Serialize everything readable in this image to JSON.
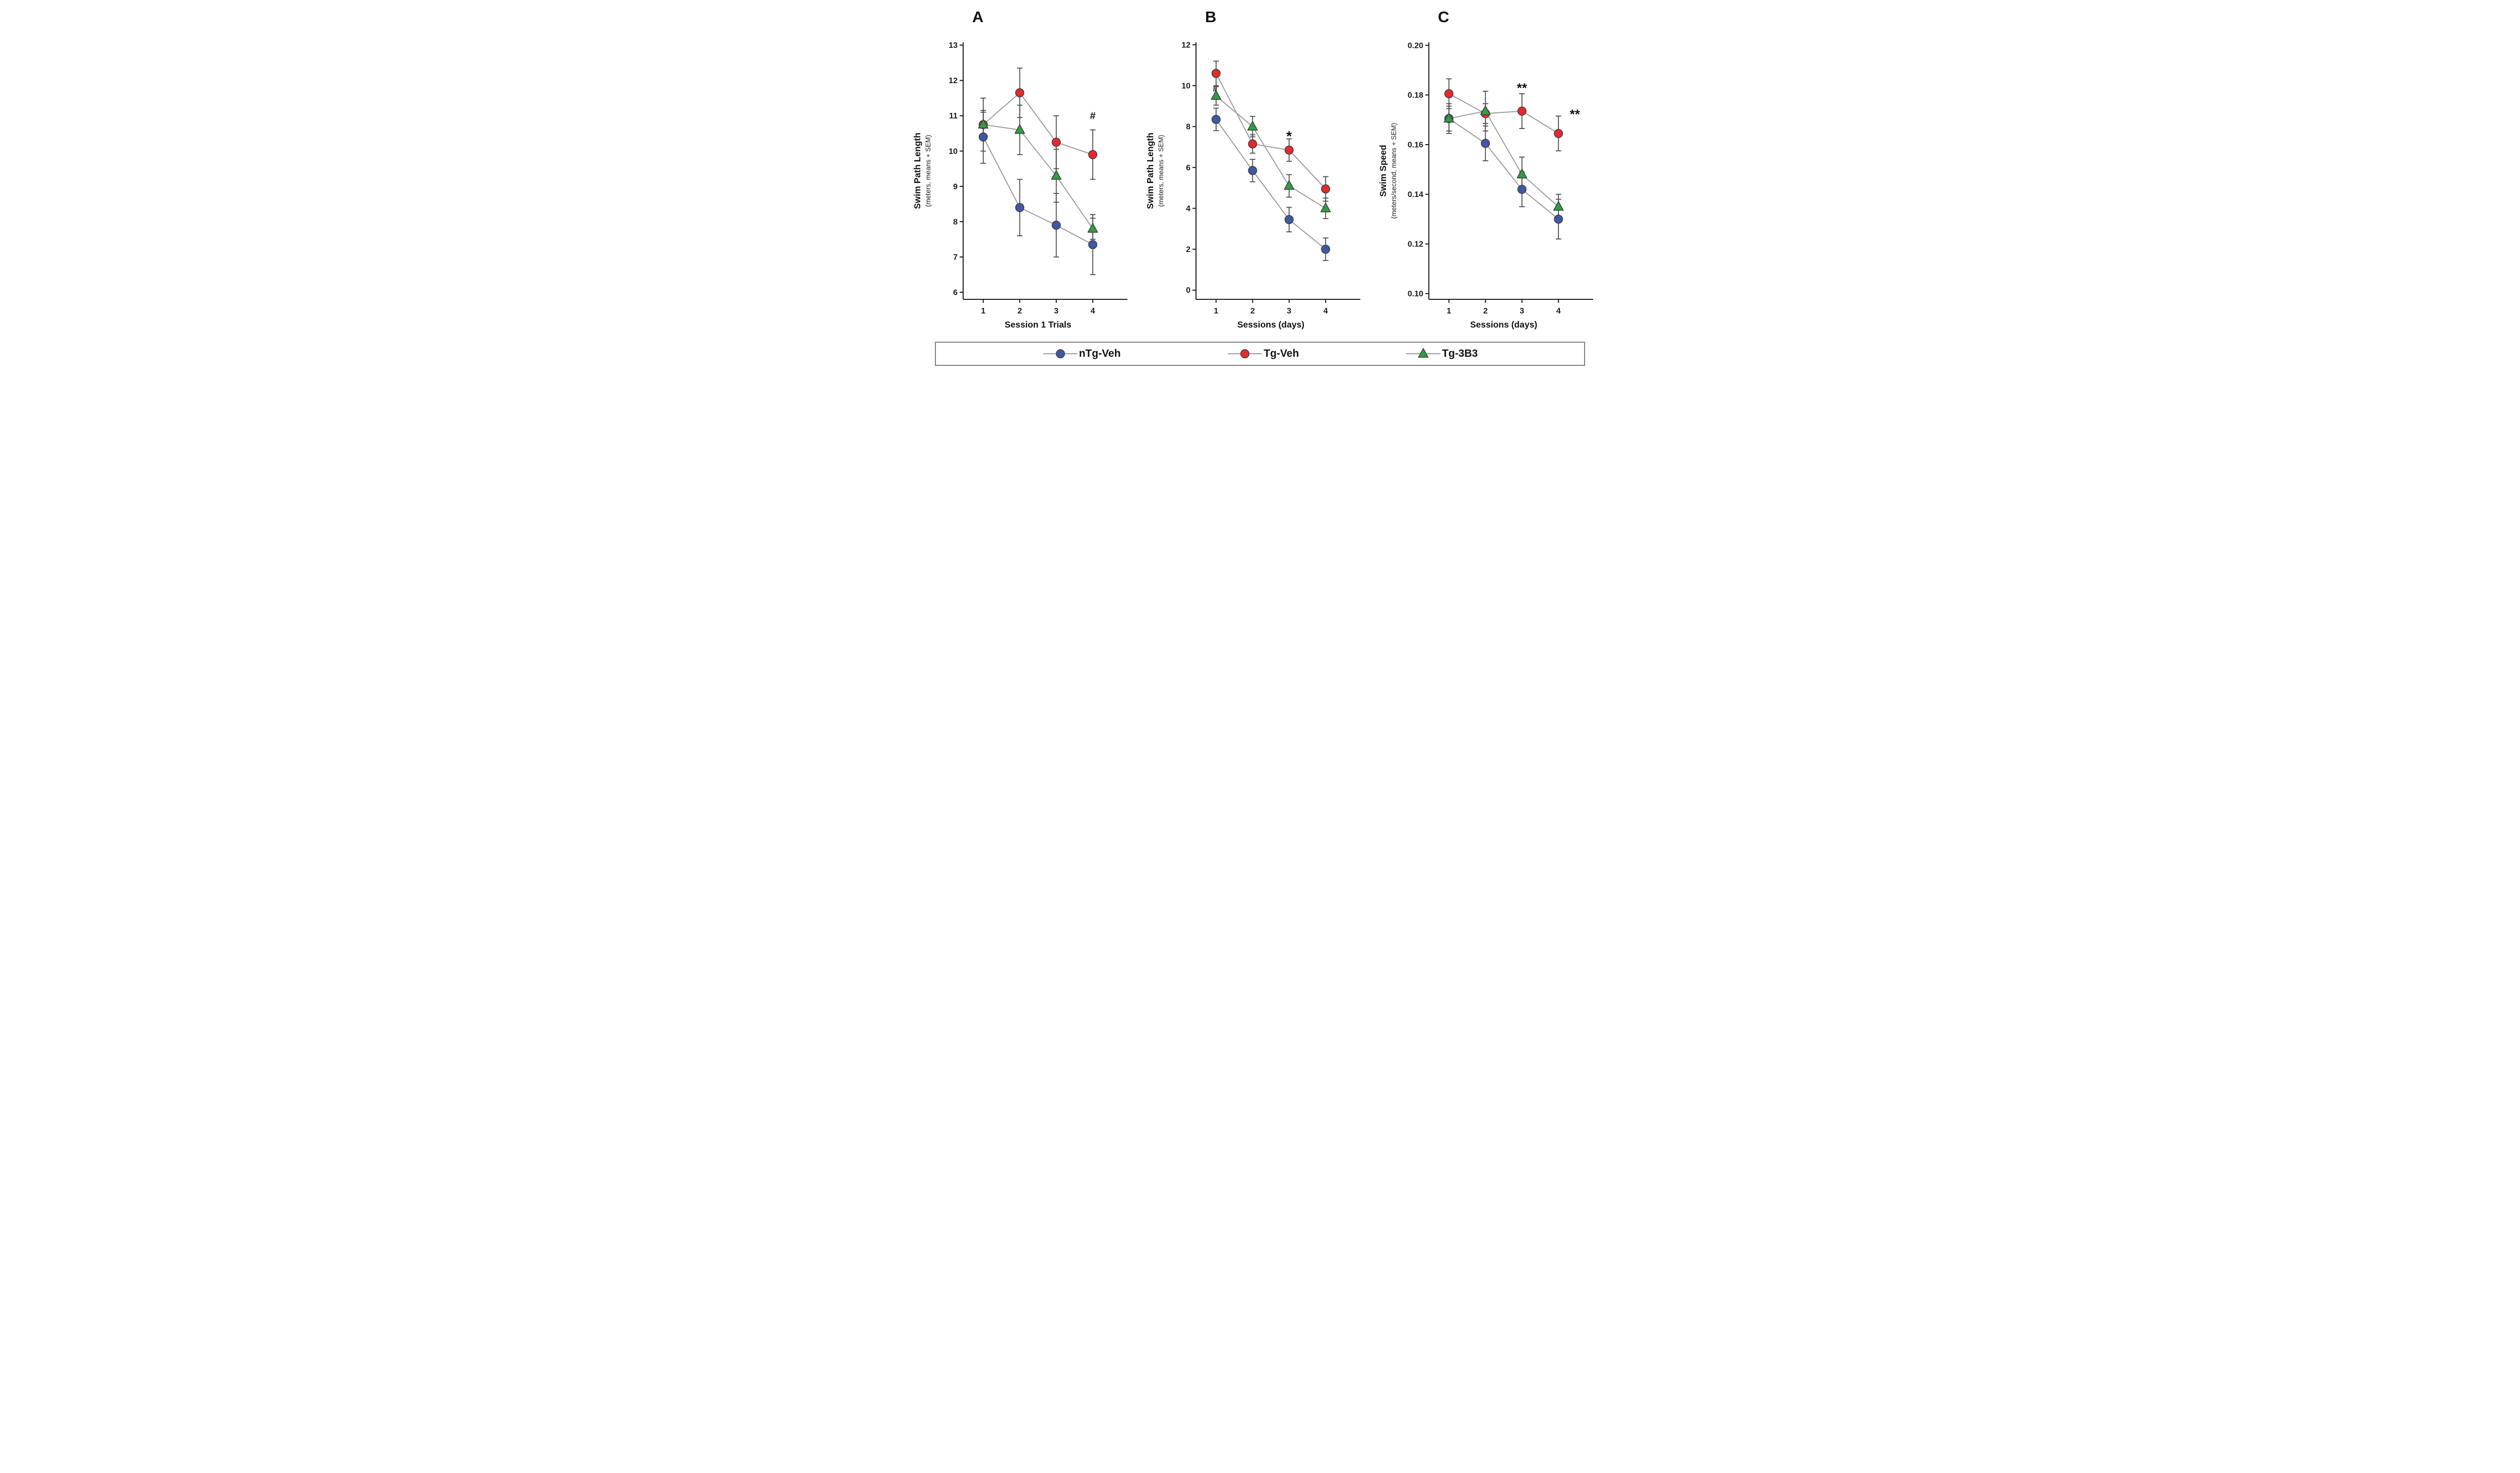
{
  "figure": {
    "background": "#ffffff"
  },
  "legend": {
    "border_color": "#7f7f7f",
    "items": [
      {
        "label": "nTg-Veh",
        "marker": "circle",
        "color": "#3f57a7"
      },
      {
        "label": "Tg-Veh",
        "marker": "circle",
        "color": "#e8282d"
      },
      {
        "label": "Tg-3B3",
        "marker": "triangle",
        "color": "#2f9e41"
      }
    ]
  },
  "style": {
    "line_color": "#9c9c9c",
    "errorbar_color": "#4a4a4a",
    "marker_edge_color": "#3f3f3f",
    "axis_color": "#1a1a1a"
  },
  "chart_data": [
    {
      "type": "line",
      "panel_label": "A",
      "xlabel": "Session 1 Trials",
      "ylabel": "Swim Path Length",
      "ylabel_sub": "(meters, means + SEM)",
      "x": [
        1,
        2,
        3,
        4
      ],
      "xticks": [
        1,
        2,
        3,
        4
      ],
      "xlim": [
        0.45,
        4.95
      ],
      "ylim": [
        5.8,
        13.08
      ],
      "yticks": [
        6,
        7,
        8,
        9,
        10,
        11,
        12,
        13
      ],
      "ytick_labels": [
        "6",
        "7",
        "8",
        "9",
        "10",
        "11",
        "12",
        "13"
      ],
      "grid": false,
      "series": [
        {
          "name": "nTg-Veh",
          "marker": "circle",
          "color": "#3f57a7",
          "values": [
            10.4,
            8.4,
            7.9,
            7.35
          ],
          "errors": [
            0.75,
            0.8,
            0.9,
            0.85
          ]
        },
        {
          "name": "Tg-Veh",
          "marker": "circle",
          "color": "#e8282d",
          "values": [
            10.75,
            11.65,
            10.25,
            9.9
          ],
          "errors": [
            0.75,
            0.7,
            0.75,
            0.7
          ]
        },
        {
          "name": "Tg-3B3",
          "marker": "triangle",
          "color": "#2f9e41",
          "values": [
            10.75,
            10.6,
            9.3,
            7.8
          ],
          "errors": [
            0.35,
            0.7,
            0.75,
            0.3
          ]
        }
      ],
      "annotations": [
        {
          "text": "#",
          "x": 4.0,
          "y": 10.9,
          "size": 20
        }
      ]
    },
    {
      "type": "line",
      "panel_label": "B",
      "xlabel": "Sessions (days)",
      "ylabel": "Swim Path Length",
      "ylabel_sub": "(meters, means + SEM)",
      "x": [
        1,
        2,
        3,
        4
      ],
      "xticks": [
        1,
        2,
        3,
        4
      ],
      "xlim": [
        0.45,
        4.95
      ],
      "ylim": [
        -0.45,
        12.12
      ],
      "yticks": [
        0,
        2,
        4,
        6,
        8,
        10,
        12
      ],
      "ytick_labels": [
        "0",
        "2",
        "4",
        "6",
        "8",
        "10",
        "12"
      ],
      "grid": false,
      "series": [
        {
          "name": "nTg-Veh",
          "marker": "circle",
          "color": "#3f57a7",
          "values": [
            8.35,
            5.85,
            3.45,
            2.0
          ],
          "errors": [
            0.55,
            0.55,
            0.6,
            0.55
          ]
        },
        {
          "name": "Tg-Veh",
          "marker": "circle",
          "color": "#e8282d",
          "values": [
            10.6,
            7.15,
            6.85,
            4.95
          ],
          "errors": [
            0.6,
            0.45,
            0.55,
            0.6
          ]
        },
        {
          "name": "Tg-3B3",
          "marker": "triangle",
          "color": "#2f9e41",
          "values": [
            9.5,
            8.0,
            5.1,
            4.0
          ],
          "errors": [
            0.45,
            0.5,
            0.55,
            0.5
          ]
        }
      ],
      "annotations": [
        {
          "text": "#",
          "x": 0.97,
          "y": 9.7,
          "size": 15
        },
        {
          "text": "*",
          "x": 3.0,
          "y": 7.3,
          "size": 28
        }
      ]
    },
    {
      "type": "line",
      "panel_label": "C",
      "xlabel": "Sessions (days)",
      "ylabel": "Swim Speed",
      "ylabel_sub": "(meters/second, means + SEM)",
      "x": [
        1,
        2,
        3,
        4
      ],
      "xticks": [
        1,
        2,
        3,
        4
      ],
      "xlim": [
        0.45,
        4.95
      ],
      "ylim": [
        0.0977,
        0.2012
      ],
      "yticks": [
        0.1,
        0.12,
        0.14,
        0.16,
        0.18,
        0.2
      ],
      "ytick_labels": [
        "0.10",
        "0.12",
        "0.14",
        "0.16",
        "0.18",
        "0.20"
      ],
      "grid": false,
      "series": [
        {
          "name": "nTg-Veh",
          "marker": "circle",
          "color": "#3f57a7",
          "values": [
            0.1705,
            0.1605,
            0.142,
            0.13
          ],
          "errors": [
            0.006,
            0.007,
            0.007,
            0.008
          ]
        },
        {
          "name": "Tg-Veh",
          "marker": "circle",
          "color": "#e8282d",
          "values": [
            0.1805,
            0.1725,
            0.1735,
            0.1645
          ],
          "errors": [
            0.006,
            0.004,
            0.007,
            0.007
          ]
        },
        {
          "name": "Tg-3B3",
          "marker": "triangle",
          "color": "#2f9e41",
          "values": [
            0.1705,
            0.1735,
            0.148,
            0.135
          ],
          "errors": [
            0.005,
            0.008,
            0.007,
            0.005
          ]
        }
      ],
      "annotations": [
        {
          "text": "**",
          "x": 3.0,
          "y": 0.181,
          "size": 26
        },
        {
          "text": "**",
          "x": 4.45,
          "y": 0.1705,
          "size": 26
        }
      ]
    }
  ]
}
